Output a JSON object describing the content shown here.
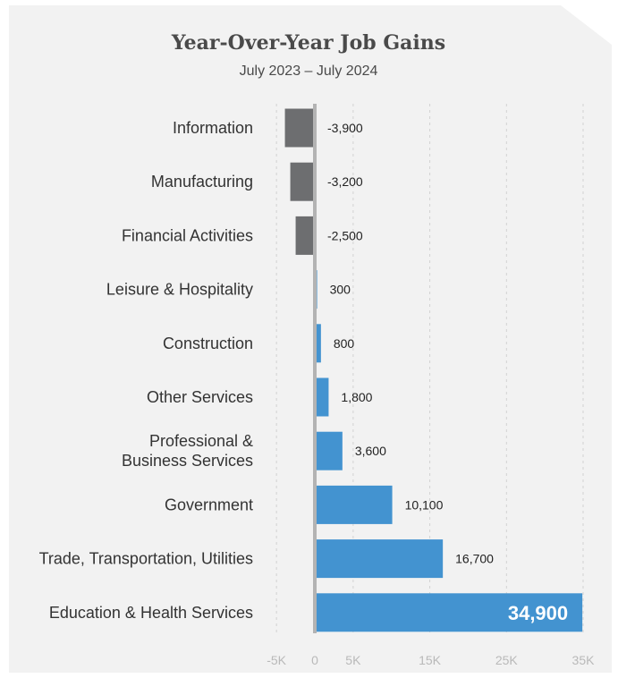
{
  "chart_data": {
    "type": "bar",
    "orientation": "horizontal",
    "title": "Year-Over-Year Job Gains",
    "subtitle": "July 2023 – July 2024",
    "categories": [
      "Information",
      "Manufacturing",
      "Financial Activities",
      "Leisure & Hospitality",
      "Construction",
      "Other Services",
      "Professional & Business Services",
      "Government",
      "Trade, Transportation, Utilities",
      "Education & Health Services"
    ],
    "values": [
      -3900,
      -3200,
      -2500,
      300,
      800,
      1800,
      3600,
      10100,
      16700,
      34900
    ],
    "value_labels": [
      "-3,900",
      "-3,200",
      "-2,500",
      "300",
      "800",
      "1,800",
      "3,600",
      "10,100",
      "16,700",
      "34,900"
    ],
    "xlim": [
      -5000,
      35000
    ],
    "xticks": [
      -5000,
      0,
      5000,
      15000,
      25000,
      35000
    ],
    "xtick_labels": [
      "-5K",
      "0",
      "5K",
      "15K",
      "25K",
      "35K"
    ],
    "grid": "vertical dashed",
    "colors": {
      "positive": "#4393d0",
      "negative": "#6d6e70",
      "zero_line": "#b3b3b3",
      "background": "#f2f2f2"
    }
  }
}
